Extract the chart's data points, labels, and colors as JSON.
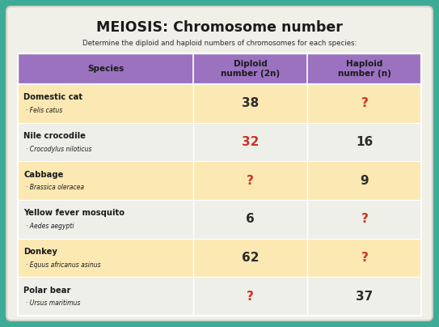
{
  "title": "MEIOSIS: Chromosome number",
  "subtitle": "Determine the diploid and haploid numbers of chromosomes for each species:",
  "col_headers": [
    "Species",
    "Diploid\nnumber (2n)",
    "Haploid\nnumber (n)"
  ],
  "rows": [
    {
      "species": "Domestic cat",
      "latin": "Felis catus",
      "diploid": "38",
      "haploid": "?",
      "diploid_red": false,
      "haploid_red": true
    },
    {
      "species": "Nile crocodile",
      "latin": "Crocodylus niloticus",
      "diploid": "32",
      "haploid": "16",
      "diploid_red": true,
      "haploid_red": false
    },
    {
      "species": "Cabbage",
      "latin": "Brassica oleracea",
      "diploid": "?",
      "haploid": "9",
      "diploid_red": true,
      "haploid_red": false
    },
    {
      "species": "Yellow fever mosquito",
      "latin": "Aedes aegypti",
      "diploid": "6",
      "haploid": "?",
      "diploid_red": false,
      "haploid_red": true
    },
    {
      "species": "Donkey",
      "latin": "Equus africanus asinus",
      "diploid": "62",
      "haploid": "?",
      "diploid_red": false,
      "haploid_red": true
    },
    {
      "species": "Polar bear",
      "latin": "Ursus maritimus",
      "diploid": "?",
      "haploid": "37",
      "diploid_red": true,
      "haploid_red": false
    }
  ],
  "bg_outer": "#3dab96",
  "bg_card": "#f0f0e8",
  "header_bg": "#9b72c0",
  "row_bg_odd": "#fce8b2",
  "row_bg_even": "#efefea",
  "header_text_color": "#1a1a1a",
  "species_text_color": "#1a1a1a",
  "normal_num_color": "#2c2c2c",
  "red_num_color": "#cc3322",
  "title_color": "#1a1a1a",
  "subtitle_color": "#2a2a2a",
  "border_color": "#c8c8c0"
}
